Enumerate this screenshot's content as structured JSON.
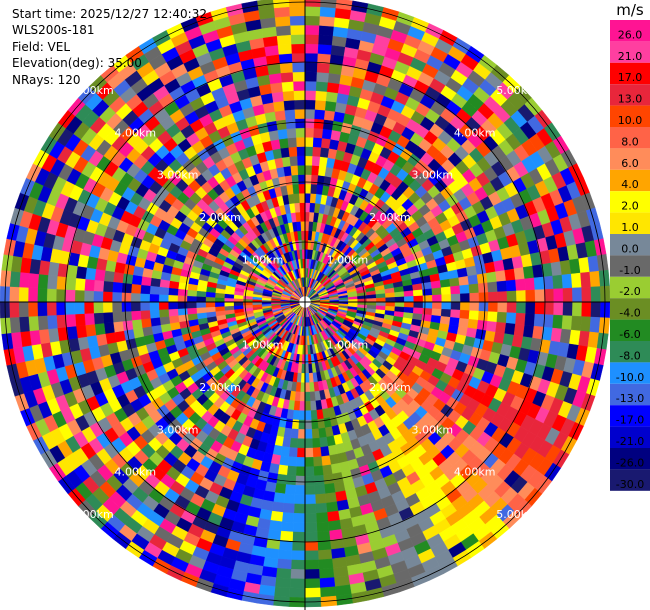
{
  "info": {
    "start_time": "Start time: 2025/12/27 12:40:32",
    "instrument": "WLS200s-181",
    "field": "Field: VEL",
    "elevation": "Elevation(deg): 35.00",
    "nrays": "NRays: 120"
  },
  "chart_data": {
    "type": "heatmap",
    "projection": "polar-ppi",
    "rays": 120,
    "range_rings": [
      "1.00km",
      "2.00km",
      "3.00km",
      "4.00km",
      "5.00km"
    ],
    "colorbar": {
      "unit": "m/s",
      "ticks": [
        "26.0",
        "21.0",
        "17.0",
        "13.0",
        "10.0",
        "8.0",
        "6.0",
        "4.0",
        "2.0",
        "1.0",
        "0.0",
        "-1.0",
        "-2.0",
        "-4.0",
        "-6.0",
        "-8.0",
        "-10.0",
        "-13.0",
        "-17.0",
        "-21.0",
        "-26.0",
        "-30.0"
      ],
      "colors": [
        "#ff1493",
        "#ff3fa0",
        "#ff0000",
        "#e8263b",
        "#ff4500",
        "#ff6347",
        "#ff8c5a",
        "#ffa500",
        "#ffff00",
        "#ffe600",
        "#778899",
        "#696969",
        "#9acd32",
        "#6b8e23",
        "#228b22",
        "#2e8b57",
        "#1e90ff",
        "#4169e1",
        "#0000ff",
        "#0000cd",
        "#000080",
        "#191970"
      ]
    }
  }
}
